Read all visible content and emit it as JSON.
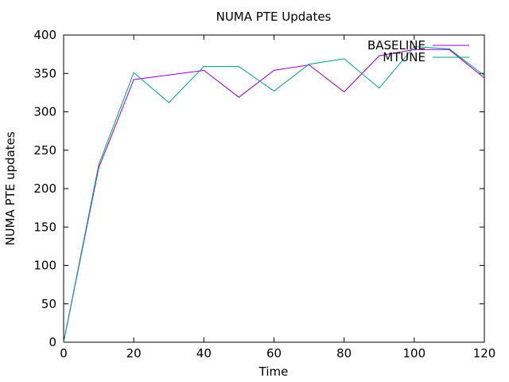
{
  "chart_data": {
    "type": "line",
    "title": "NUMA PTE Updates",
    "xlabel": "Time",
    "ylabel": "NUMA PTE updates",
    "xlim": [
      0,
      120
    ],
    "ylim": [
      0,
      400
    ],
    "xticks": [
      0,
      20,
      40,
      60,
      80,
      100,
      120
    ],
    "yticks": [
      0,
      50,
      100,
      150,
      200,
      250,
      300,
      350,
      400
    ],
    "grid": false,
    "legend_position": "top-right",
    "x": [
      0,
      10,
      20,
      30,
      40,
      50,
      60,
      70,
      80,
      90,
      100,
      110,
      120
    ],
    "series": [
      {
        "name": "BASELINE",
        "color": "#9400d3",
        "values": [
          0,
          227,
          342,
          348,
          354,
          319,
          354,
          361,
          326,
          373,
          381,
          381,
          344
        ]
      },
      {
        "name": "MTUNE",
        "color": "#009e73",
        "values": [
          0,
          231,
          351,
          312,
          359,
          359,
          327,
          362,
          369,
          331,
          385,
          382,
          347
        ]
      }
    ]
  }
}
